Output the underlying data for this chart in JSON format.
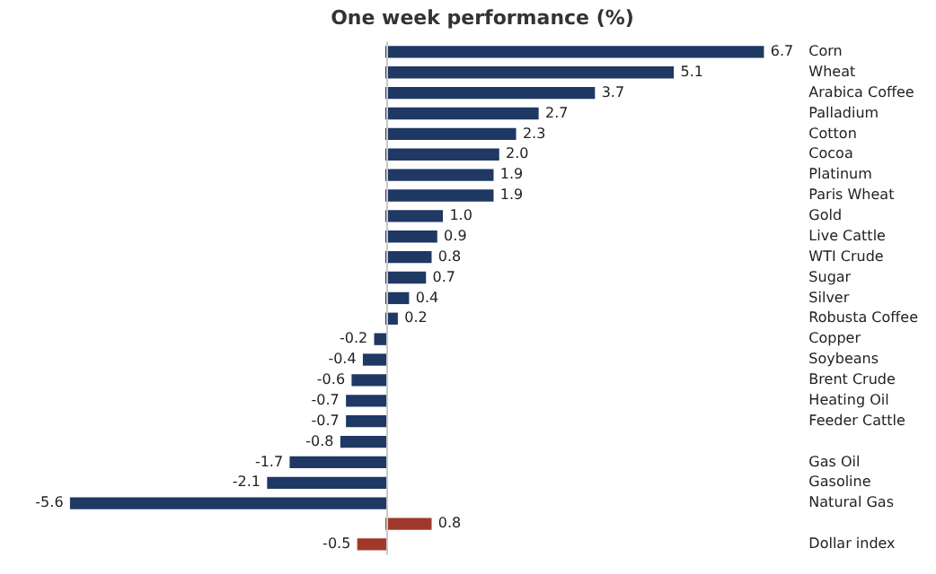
{
  "chart_data": {
    "type": "bar",
    "orientation": "horizontal",
    "title": "One week performance (%)",
    "categories": [
      "Corn",
      "Wheat",
      "Arabica Coffee",
      "Palladium",
      "Cotton",
      "Cocoa",
      "Platinum",
      "Paris Wheat",
      "Gold",
      "Live Cattle",
      "WTI Crude",
      "Sugar",
      "Silver",
      "Robusta Coffee",
      "Copper",
      "Soybeans",
      "Brent Crude",
      "Heating Oil",
      "Feeder Cattle",
      null,
      "Gas Oil",
      "Gasoline",
      "Natural Gas",
      null,
      "Dollar index"
    ],
    "values": [
      6.7,
      5.1,
      3.7,
      2.7,
      2.3,
      2.0,
      1.9,
      1.9,
      1.0,
      0.9,
      0.8,
      0.7,
      0.4,
      0.2,
      -0.2,
      -0.4,
      -0.6,
      -0.7,
      -0.7,
      -0.8,
      -1.7,
      -2.1,
      -5.6,
      0.8,
      -0.5
    ],
    "colors": [
      "#1f3864",
      "#1f3864",
      "#1f3864",
      "#1f3864",
      "#1f3864",
      "#1f3864",
      "#1f3864",
      "#1f3864",
      "#1f3864",
      "#1f3864",
      "#1f3864",
      "#1f3864",
      "#1f3864",
      "#1f3864",
      "#1f3864",
      "#1f3864",
      "#1f3864",
      "#1f3864",
      "#1f3864",
      "#1f3864",
      "#1f3864",
      "#1f3864",
      "#1f3864",
      "#a0392b",
      "#a0392b"
    ],
    "value_labels": [
      "6.7",
      "5.1",
      "3.7",
      "2.7",
      "2.3",
      "2.0",
      "1.9",
      "1.9",
      "1.0",
      "0.9",
      "0.8",
      "0.7",
      "0.4",
      "0.2",
      "-0.2",
      "-0.4",
      "-0.6",
      "-0.7",
      "-0.7",
      "-0.8",
      "-1.7",
      "-2.1",
      "-5.6",
      "0.8",
      "-0.5"
    ],
    "grid": false,
    "legend": false
  }
}
